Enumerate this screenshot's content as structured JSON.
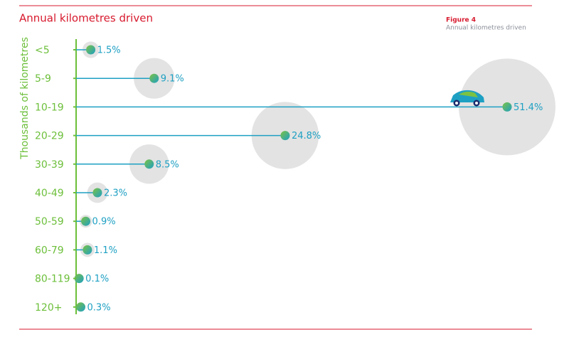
{
  "chart_data": {
    "type": "lollipop-bubble",
    "title": "Annual kilometres driven",
    "figure_label": "Figure 4",
    "figure_caption": "Annual kilometres driven",
    "y_label": "Thousands of kilometres",
    "categories": [
      "<5",
      "5-9",
      "10-19",
      "20-29",
      "30-39",
      "40-49",
      "50-59",
      "60-79",
      "80-119",
      "120+"
    ],
    "values": [
      1.5,
      9.1,
      51.4,
      24.8,
      8.5,
      2.3,
      0.9,
      1.1,
      0.1,
      0.3
    ],
    "value_labels": [
      "1.5%",
      "9.1%",
      "51.4%",
      "24.8%",
      "8.5%",
      "2.3%",
      "0.9%",
      "1.1%",
      "0.1%",
      "0.3%"
    ],
    "color": "#1ea0c3",
    "bubble_color": "#e3e3e3",
    "category_color": "#6cbf3a"
  }
}
